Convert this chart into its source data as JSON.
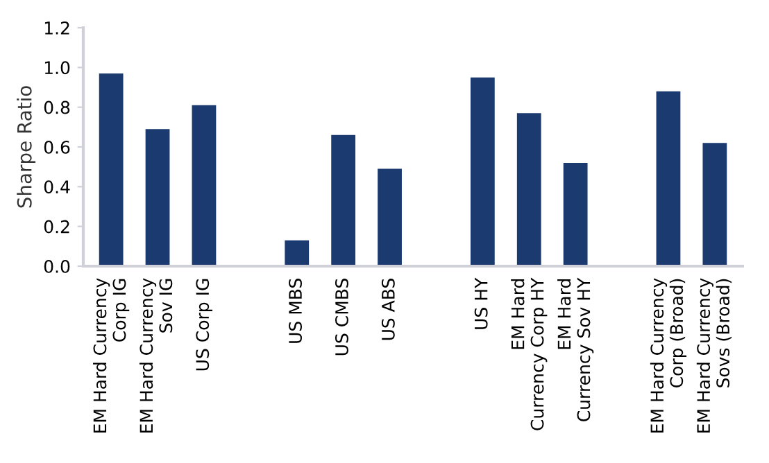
{
  "chart_data": {
    "type": "bar",
    "ylabel": "Sharpe Ratio",
    "categories": [
      "EM Hard Currency\nCorp IG",
      "EM Hard Currency\nSov IG",
      "US Corp IG",
      null,
      "US MBS",
      "US CMBS",
      "US ABS",
      null,
      "US HY",
      "EM Hard\nCurrency Corp HY",
      "EM Hard\nCurrency Sov HY",
      null,
      "EM Hard Currency\nCorp (Broad)",
      "EM Hard Currency\nSovs (Broad)"
    ],
    "values": [
      0.97,
      0.69,
      0.81,
      null,
      0.13,
      0.66,
      0.49,
      null,
      0.95,
      0.77,
      0.52,
      null,
      0.88,
      0.62
    ],
    "color": "#1a3a70",
    "ylim": [
      0,
      1.2
    ],
    "yticks": [
      {
        "value": 0,
        "label": "0.0"
      },
      {
        "value": 0.2,
        "label": "0.2"
      },
      {
        "value": 0.4,
        "label": "0.4"
      },
      {
        "value": 0.6,
        "label": "0.6"
      },
      {
        "value": 0.8,
        "label": "0.8"
      },
      {
        "value": 1.0,
        "label": "1.0"
      },
      {
        "value": 1.2,
        "label": "1.2"
      }
    ],
    "grid": false,
    "legend": false
  }
}
